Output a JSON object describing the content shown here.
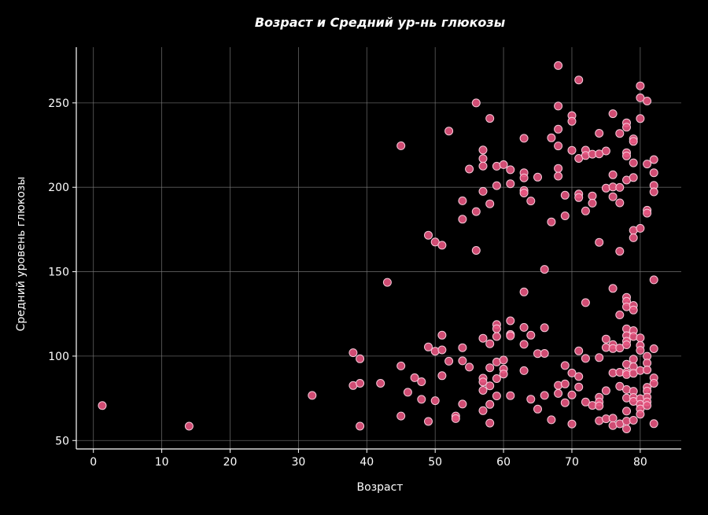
{
  "chart_data": {
    "type": "scatter",
    "title": "Возраст и Средний ур-нь глюкозы",
    "xlabel": "Возраст",
    "ylabel": "Средний уровень глюкозы",
    "xlim": [
      -2.5,
      86
    ],
    "ylim": [
      45,
      283
    ],
    "xticks": [
      0,
      10,
      20,
      30,
      40,
      50,
      60,
      70,
      80
    ],
    "yticks": [
      50,
      100,
      150,
      200,
      250
    ],
    "grid": true,
    "legend": "none",
    "colors": {
      "background": "#000000",
      "point": "#e75480",
      "point_edge": "#f7c7d8",
      "grid": "#7a7a7a",
      "text": "#ffffff"
    },
    "points": [
      [
        1.3,
        70.7
      ],
      [
        14,
        58.5
      ],
      [
        32,
        76.7
      ],
      [
        38,
        102
      ],
      [
        38,
        82.6
      ],
      [
        39,
        98.4
      ],
      [
        39,
        83.9
      ],
      [
        39,
        58.5
      ],
      [
        42,
        83.9
      ],
      [
        43,
        143.7
      ],
      [
        45,
        224.6
      ],
      [
        45,
        94.2
      ],
      [
        45,
        64.5
      ],
      [
        46,
        78.6
      ],
      [
        47,
        87.2
      ],
      [
        48,
        84.8
      ],
      [
        48,
        74.4
      ],
      [
        49,
        171.6
      ],
      [
        49,
        105.4
      ],
      [
        49,
        61.3
      ],
      [
        50,
        167.6
      ],
      [
        50,
        102.9
      ],
      [
        50,
        73.6
      ],
      [
        51,
        165.7
      ],
      [
        51,
        112.4
      ],
      [
        51,
        103.7
      ],
      [
        51,
        88.4
      ],
      [
        52,
        233.3
      ],
      [
        52,
        97
      ],
      [
        53,
        64.5
      ],
      [
        53,
        63
      ],
      [
        54,
        192
      ],
      [
        54,
        181.1
      ],
      [
        54,
        105
      ],
      [
        54,
        97.2
      ],
      [
        54,
        71.6
      ],
      [
        55,
        210.8
      ],
      [
        55,
        93.5
      ],
      [
        56,
        250
      ],
      [
        56,
        185.6
      ],
      [
        56,
        162.6
      ],
      [
        57,
        222.1
      ],
      [
        57,
        217
      ],
      [
        57,
        212.6
      ],
      [
        57,
        197.6
      ],
      [
        57,
        110.6
      ],
      [
        57,
        86.9
      ],
      [
        57,
        84.7
      ],
      [
        57,
        79.7
      ],
      [
        57,
        67.7
      ],
      [
        58,
        240.8
      ],
      [
        58,
        190.2
      ],
      [
        58,
        107.3
      ],
      [
        58,
        93.1
      ],
      [
        58,
        82.4
      ],
      [
        58,
        71.4
      ],
      [
        58,
        60.3
      ],
      [
        59,
        212.5
      ],
      [
        59,
        201
      ],
      [
        59,
        118.7
      ],
      [
        59,
        116.2
      ],
      [
        59,
        111.6
      ],
      [
        59,
        96.5
      ],
      [
        59,
        86.7
      ],
      [
        59,
        76.4
      ],
      [
        60,
        213.4
      ],
      [
        60,
        97.7
      ],
      [
        60,
        92.3
      ],
      [
        60,
        89.4
      ],
      [
        61,
        210.4
      ],
      [
        61,
        202.1
      ],
      [
        61,
        120.9
      ],
      [
        61,
        112.8
      ],
      [
        61,
        112
      ],
      [
        61,
        76.6
      ],
      [
        63,
        229
      ],
      [
        63,
        208.6
      ],
      [
        63,
        205.6
      ],
      [
        63,
        198.1
      ],
      [
        63,
        196.6
      ],
      [
        63,
        138
      ],
      [
        63,
        117
      ],
      [
        63,
        107
      ],
      [
        63,
        91.4
      ],
      [
        64,
        191.9
      ],
      [
        64,
        112.4
      ],
      [
        64,
        74.5
      ],
      [
        65,
        206
      ],
      [
        65,
        101.5
      ],
      [
        65,
        68.6
      ],
      [
        66,
        151.4
      ],
      [
        66,
        116.8
      ],
      [
        66,
        101.6
      ],
      [
        66,
        76.7
      ],
      [
        67,
        179.5
      ],
      [
        67,
        229.3
      ],
      [
        67,
        62.3
      ],
      [
        68,
        272.1
      ],
      [
        68,
        248.1
      ],
      [
        68,
        234.4
      ],
      [
        68,
        224.5
      ],
      [
        68,
        211.2
      ],
      [
        68,
        206.6
      ],
      [
        68,
        82.7
      ],
      [
        68,
        77.9
      ],
      [
        69,
        195.3
      ],
      [
        69,
        183.1
      ],
      [
        69,
        94.4
      ],
      [
        69,
        83.5
      ],
      [
        69,
        72.4
      ],
      [
        70,
        242.5
      ],
      [
        70,
        239.1
      ],
      [
        70,
        221.9
      ],
      [
        70,
        90
      ],
      [
        70,
        77
      ],
      [
        70,
        59.8
      ],
      [
        71,
        263.6
      ],
      [
        71,
        217.1
      ],
      [
        71,
        196
      ],
      [
        71,
        193.9
      ],
      [
        71,
        103.1
      ],
      [
        71,
        87.9
      ],
      [
        71,
        81.7
      ],
      [
        72,
        222
      ],
      [
        72,
        218.8
      ],
      [
        72,
        186
      ],
      [
        72,
        131.7
      ],
      [
        72,
        98.6
      ],
      [
        72,
        72.8
      ],
      [
        73,
        219.6
      ],
      [
        73,
        194.9
      ],
      [
        73,
        190.6
      ],
      [
        73,
        70.8
      ],
      [
        74,
        232
      ],
      [
        74,
        219.8
      ],
      [
        74,
        167.4
      ],
      [
        74,
        99.1
      ],
      [
        74,
        75.6
      ],
      [
        74,
        72.8
      ],
      [
        74,
        70.5
      ],
      [
        74,
        61.7
      ],
      [
        75,
        221.5
      ],
      [
        75,
        199.5
      ],
      [
        75,
        110.1
      ],
      [
        75,
        105.1
      ],
      [
        75,
        79.5
      ],
      [
        75,
        62.9
      ],
      [
        76,
        243.6
      ],
      [
        76,
        207.4
      ],
      [
        76,
        200.2
      ],
      [
        76,
        194.4
      ],
      [
        76,
        140.1
      ],
      [
        76,
        106.8
      ],
      [
        76,
        104.5
      ],
      [
        76,
        90.1
      ],
      [
        76,
        63.2
      ],
      [
        76,
        58.9
      ],
      [
        77,
        231.9
      ],
      [
        77,
        199.9
      ],
      [
        77,
        190.8
      ],
      [
        77,
        162.1
      ],
      [
        77,
        124.4
      ],
      [
        77,
        104.8
      ],
      [
        77,
        90.4
      ],
      [
        77,
        82.1
      ],
      [
        77,
        59.9
      ],
      [
        78,
        238.2
      ],
      [
        78,
        235.6
      ],
      [
        78,
        220.5
      ],
      [
        78,
        218.6
      ],
      [
        78,
        204.3
      ],
      [
        78,
        134.8
      ],
      [
        78,
        132.4
      ],
      [
        78,
        129.2
      ],
      [
        78,
        116.1
      ],
      [
        78,
        112.1
      ],
      [
        78,
        108.8
      ],
      [
        78,
        106.7
      ],
      [
        78,
        95.2
      ],
      [
        78,
        90.4
      ],
      [
        78,
        89.1
      ],
      [
        78,
        80.2
      ],
      [
        78,
        75.2
      ],
      [
        78,
        67.4
      ],
      [
        78,
        61.5
      ],
      [
        78,
        56.9
      ],
      [
        79,
        228.7
      ],
      [
        79,
        227.2
      ],
      [
        79,
        214.5
      ],
      [
        79,
        205.8
      ],
      [
        79,
        174.5
      ],
      [
        79,
        170.1
      ],
      [
        79,
        130
      ],
      [
        79,
        127.3
      ],
      [
        79,
        115.1
      ],
      [
        79,
        111.6
      ],
      [
        79,
        98.2
      ],
      [
        79,
        93.7
      ],
      [
        79,
        89.8
      ],
      [
        79,
        79.2
      ],
      [
        79,
        75.5
      ],
      [
        79,
        73.2
      ],
      [
        79,
        62
      ],
      [
        80,
        260.1
      ],
      [
        80,
        253
      ],
      [
        80,
        240.7
      ],
      [
        80,
        175.7
      ],
      [
        80,
        110.8
      ],
      [
        80,
        106.3
      ],
      [
        80,
        103.4
      ],
      [
        80,
        91.5
      ],
      [
        80,
        74.8
      ],
      [
        80,
        71.4
      ],
      [
        80,
        68.7
      ],
      [
        80,
        65.6
      ],
      [
        81,
        251.1
      ],
      [
        81,
        213.8
      ],
      [
        81,
        186.4
      ],
      [
        81,
        184.7
      ],
      [
        81,
        99.9
      ],
      [
        81,
        95.9
      ],
      [
        81,
        91.8
      ],
      [
        81,
        81.5
      ],
      [
        81,
        79.3
      ],
      [
        81,
        75.7
      ],
      [
        81,
        72.9
      ],
      [
        81,
        70.7
      ],
      [
        82,
        216.4
      ],
      [
        82,
        208.6
      ],
      [
        82,
        201.1
      ],
      [
        82,
        197.3
      ],
      [
        82,
        145.2
      ],
      [
        82,
        104.4
      ],
      [
        82,
        87.1
      ],
      [
        82,
        83.9
      ],
      [
        82,
        60
      ]
    ]
  }
}
